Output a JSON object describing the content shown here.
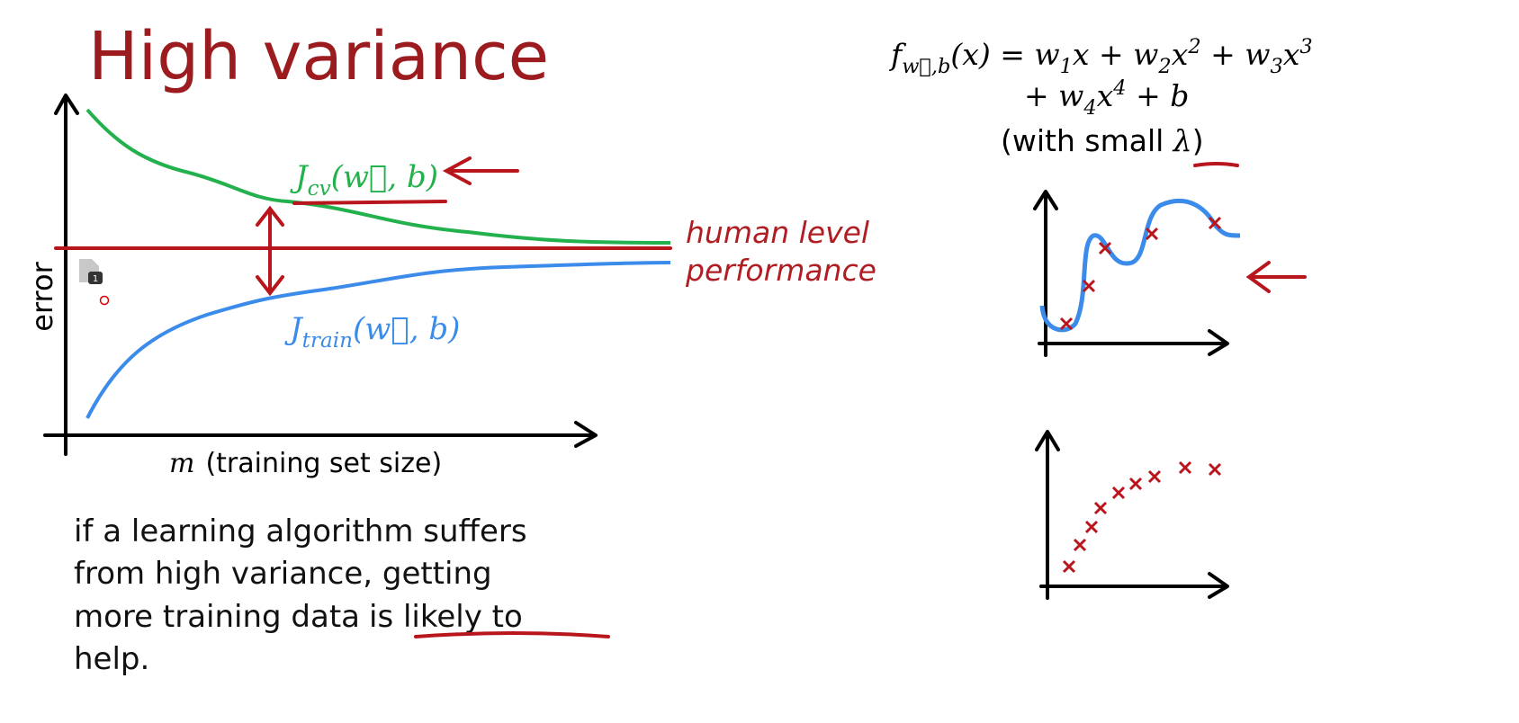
{
  "title": "High variance",
  "formula": {
    "line1": [
      {
        "t": "f"
      },
      {
        "sub": "w⃗,b"
      },
      {
        "t": "(x) = w"
      },
      {
        "sub": "1"
      },
      {
        "t": "x + w"
      },
      {
        "sub": "2"
      },
      {
        "t": "x"
      },
      {
        "sup": "2"
      },
      {
        "t": " + w"
      },
      {
        "sub": "3"
      },
      {
        "t": "x"
      },
      {
        "sup": "3"
      }
    ],
    "line2": [
      {
        "t": "+ w"
      },
      {
        "sub": "4"
      },
      {
        "t": "x"
      },
      {
        "sup": "4"
      },
      {
        "t": " + b"
      }
    ],
    "note_before": "(with small ",
    "lambda": "λ",
    "note_after": ")"
  },
  "learning_curve": {
    "y_label": "error",
    "x_label_var": "m",
    "x_label": "(training set size)",
    "cv_label": [
      {
        "t": "J"
      },
      {
        "sub": "cv"
      },
      {
        "t": "(w⃗, b)"
      }
    ],
    "train_label": [
      {
        "t": "J"
      },
      {
        "sub": "train"
      },
      {
        "t": "(w⃗, b)"
      }
    ],
    "human_line1": "human level",
    "human_line2": "performance"
  },
  "badge": "1",
  "paragraph": {
    "line1": "if a learning algorithm suffers",
    "line2": "from high variance, getting",
    "line3_before": "more training data",
    "line3_underlined": "is likely to",
    "line4": "help."
  }
}
